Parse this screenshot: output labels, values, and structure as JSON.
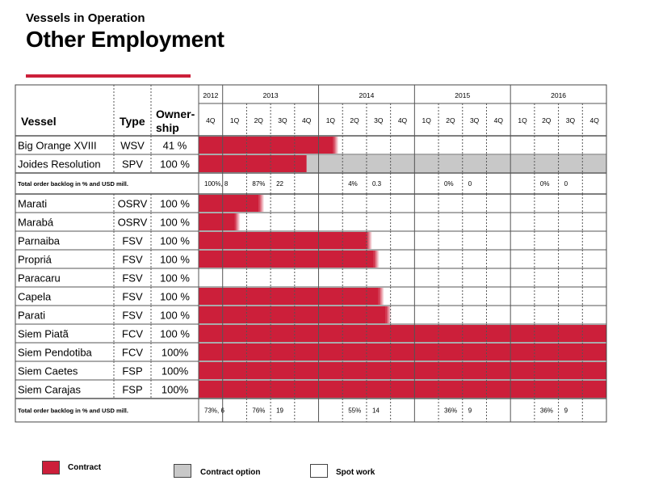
{
  "header": {
    "subtitle": "Vessels in Operation",
    "title": "Other Employment",
    "accent_color": "#cc1f3a"
  },
  "legend": [
    {
      "label": "Contract",
      "color": "#cc1f3a"
    },
    {
      "label": "Contract option",
      "color": "#c8c8c8"
    },
    {
      "label": "Spot work",
      "color": "#ffffff"
    }
  ],
  "chart_data": {
    "type": "table",
    "columns": {
      "vessel": "Vessel",
      "type": "Type",
      "ownership": "Owner-\nship"
    },
    "years": [
      {
        "label": "2012",
        "quarters": [
          "4Q"
        ]
      },
      {
        "label": "2013",
        "quarters": [
          "1Q",
          "2Q",
          "3Q",
          "4Q"
        ]
      },
      {
        "label": "2014",
        "quarters": [
          "1Q",
          "2Q",
          "3Q",
          "4Q"
        ]
      },
      {
        "label": "2015",
        "quarters": [
          "1Q",
          "2Q",
          "3Q",
          "4Q"
        ]
      },
      {
        "label": "2016",
        "quarters": [
          "1Q",
          "2Q",
          "3Q",
          "4Q"
        ]
      }
    ],
    "rows": [
      {
        "kind": "vessel",
        "vessel": "Big Orange XVIII",
        "type": "WSV",
        "ownership": "41 %",
        "contract_quarters": 5.6,
        "option_quarters": 0
      },
      {
        "kind": "vessel",
        "vessel": "Joides Resolution",
        "type": "SPV",
        "ownership": "100 %",
        "contract_quarters": 4.5,
        "option_quarters": 12.5
      },
      {
        "kind": "backlog",
        "label": "Total order backlog in % and USD mill.",
        "values": {
          "0": "100%, 8",
          "2": "87%",
          "3": "22",
          "6": "4%",
          "7": "0.3",
          "10": "0%",
          "11": "0",
          "14": "0%",
          "15": "0"
        }
      },
      {
        "kind": "vessel",
        "vessel": "Marati",
        "type": "OSRV",
        "ownership": "100 %",
        "contract_quarters": 2.5,
        "option_quarters": 0
      },
      {
        "kind": "vessel",
        "vessel": "Marabá",
        "type": "OSRV",
        "ownership": "100 %",
        "contract_quarters": 1.5,
        "option_quarters": 0
      },
      {
        "kind": "vessel",
        "vessel": "Parnaiba",
        "type": "FSV",
        "ownership": "100 %",
        "contract_quarters": 7.0,
        "option_quarters": 0
      },
      {
        "kind": "vessel",
        "vessel": "Propriá",
        "type": "FSV",
        "ownership": "100 %",
        "contract_quarters": 7.3,
        "option_quarters": 0
      },
      {
        "kind": "vessel",
        "vessel": "Paracaru",
        "type": "FSV",
        "ownership": "100 %",
        "contract_quarters": 0,
        "option_quarters": 0
      },
      {
        "kind": "vessel",
        "vessel": "Capela",
        "type": "FSV",
        "ownership": "100 %",
        "contract_quarters": 7.5,
        "option_quarters": 0
      },
      {
        "kind": "vessel",
        "vessel": "Parati",
        "type": "FSV",
        "ownership": "100 %",
        "contract_quarters": 7.8,
        "option_quarters": 0
      },
      {
        "kind": "vessel",
        "vessel": "Siem Piatã",
        "type": "FCV",
        "ownership": "100 %",
        "contract_quarters": 17,
        "option_quarters": 0
      },
      {
        "kind": "vessel",
        "vessel": "Siem Pendotiba",
        "type": "FCV",
        "ownership": "100%",
        "contract_quarters": 17,
        "option_quarters": 0
      },
      {
        "kind": "vessel",
        "vessel": "Siem Caetes",
        "type": "FSP",
        "ownership": "100%",
        "contract_quarters": 17,
        "option_quarters": 0
      },
      {
        "kind": "vessel",
        "vessel": "Siem Carajas",
        "type": "FSP",
        "ownership": "100%",
        "contract_quarters": 17,
        "option_quarters": 0
      },
      {
        "kind": "backlog",
        "label": "Total order backlog in % and USD mill.",
        "values": {
          "0": "73%, 6",
          "2": "76%",
          "3": "19",
          "6": "55%",
          "7": "14",
          "10": "36%",
          "11": "9",
          "14": "36%",
          "15": "9"
        }
      }
    ]
  }
}
